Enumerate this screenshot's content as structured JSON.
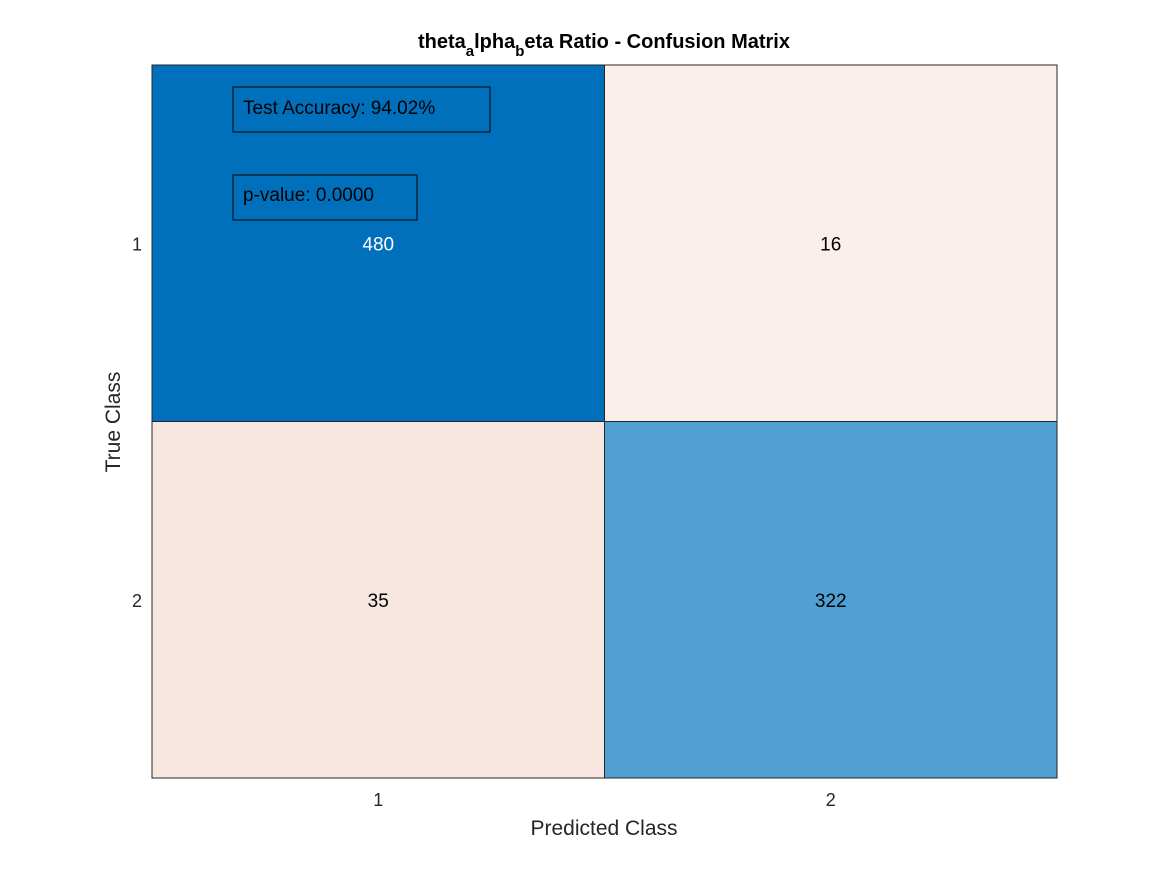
{
  "chart_data": {
    "type": "heatmap",
    "title_parts": [
      {
        "text": "theta",
        "sub": false
      },
      {
        "text": "a",
        "sub": true
      },
      {
        "text": "lpha",
        "sub": false
      },
      {
        "text": "b",
        "sub": true
      },
      {
        "text": "eta Ratio - Confusion Matrix",
        "sub": false
      }
    ],
    "xlabel": "Predicted Class",
    "ylabel": "True Class",
    "x_categories": [
      "1",
      "2"
    ],
    "y_categories": [
      "1",
      "2"
    ],
    "matrix": [
      [
        480,
        16
      ],
      [
        35,
        322
      ]
    ],
    "colors": {
      "diag_high": "#0070BD",
      "diag_mid": "#50A0D4",
      "offdiag_low": "#FBEFEB",
      "offdiag_mid": "#F8E7E1",
      "text_dark": "#000000",
      "text_light": "#FFFFFF"
    },
    "annotations": [
      {
        "text": "Test Accuracy: 94.02%"
      },
      {
        "text": "p-value: 0.0000"
      }
    ]
  }
}
